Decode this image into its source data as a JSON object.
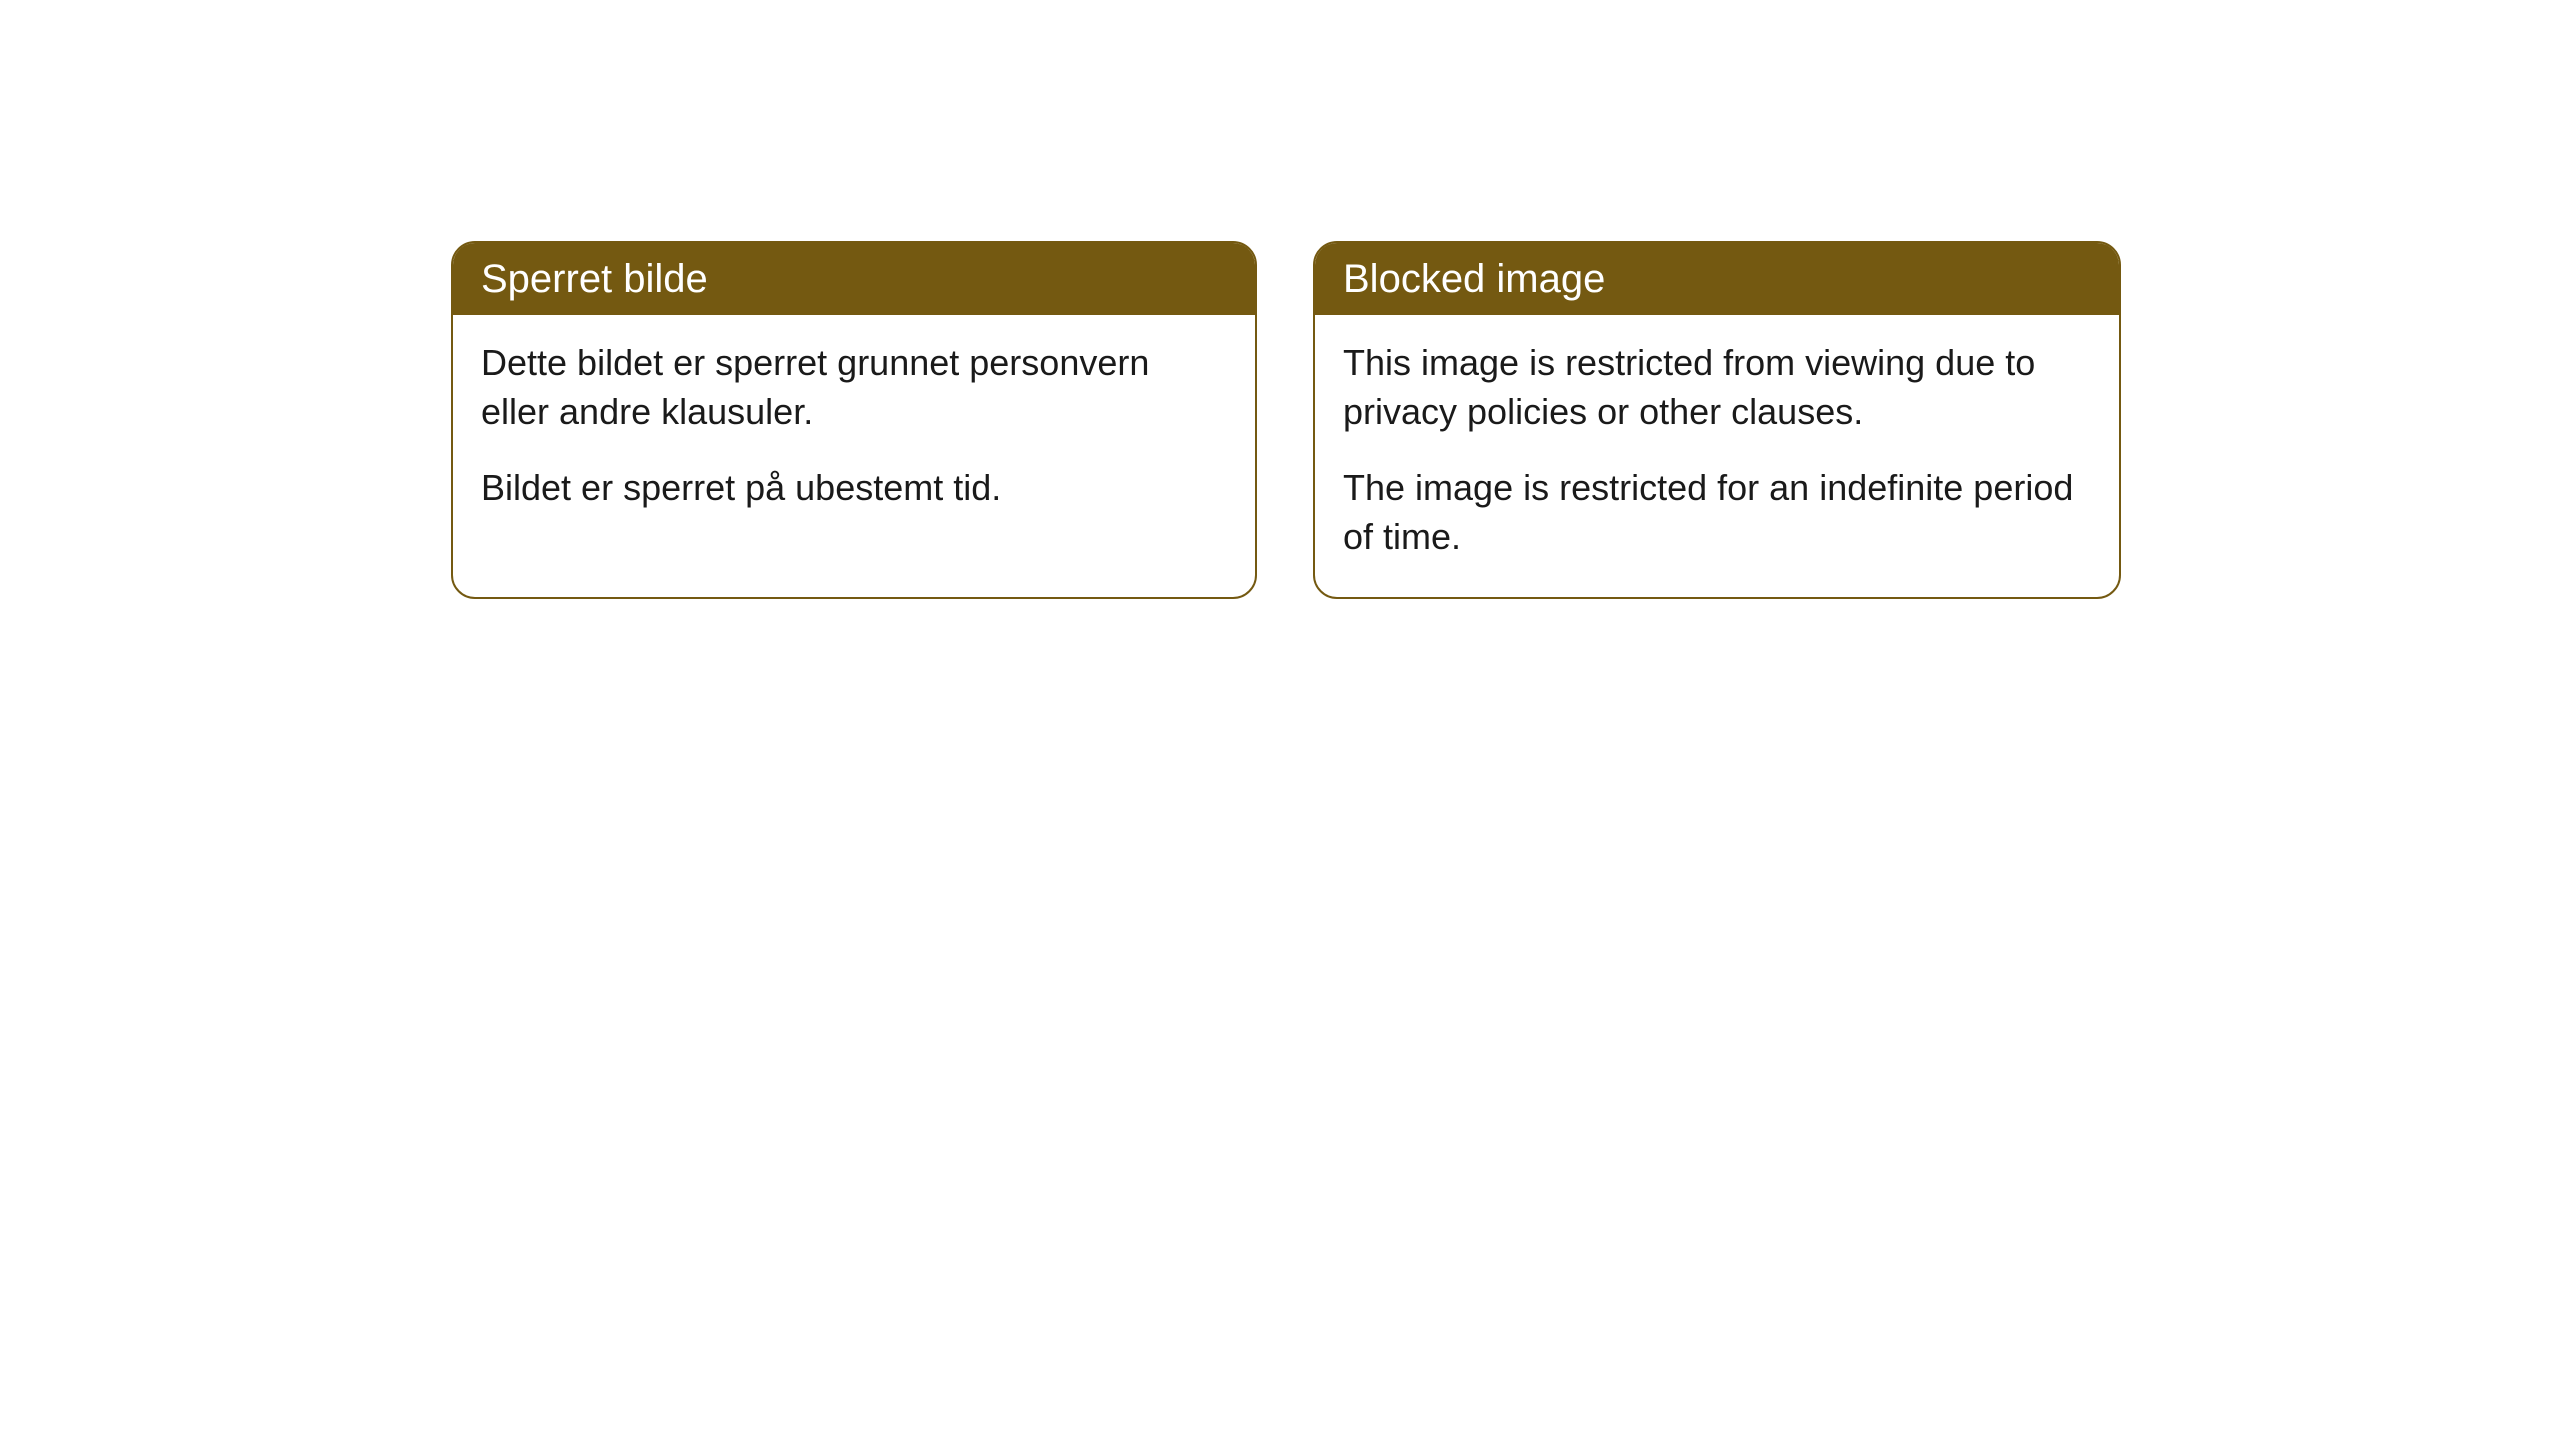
{
  "panels": {
    "left": {
      "header": "Sperret bilde",
      "paragraph1": "Dette bildet er sperret grunnet personvern eller andre klausuler.",
      "paragraph2": "Bildet er sperret på ubestemt tid."
    },
    "right": {
      "header": "Blocked image",
      "paragraph1": "This image is restricted from viewing due to privacy policies or other clauses.",
      "paragraph2": "The image is restricted for an indefinite period of time."
    }
  },
  "styling": {
    "accent_color": "#745911",
    "background_color": "#ffffff",
    "text_color": "#1a1a1a",
    "header_text_color": "#ffffff",
    "border_radius": 24,
    "header_fontsize": 40,
    "body_fontsize": 36
  }
}
